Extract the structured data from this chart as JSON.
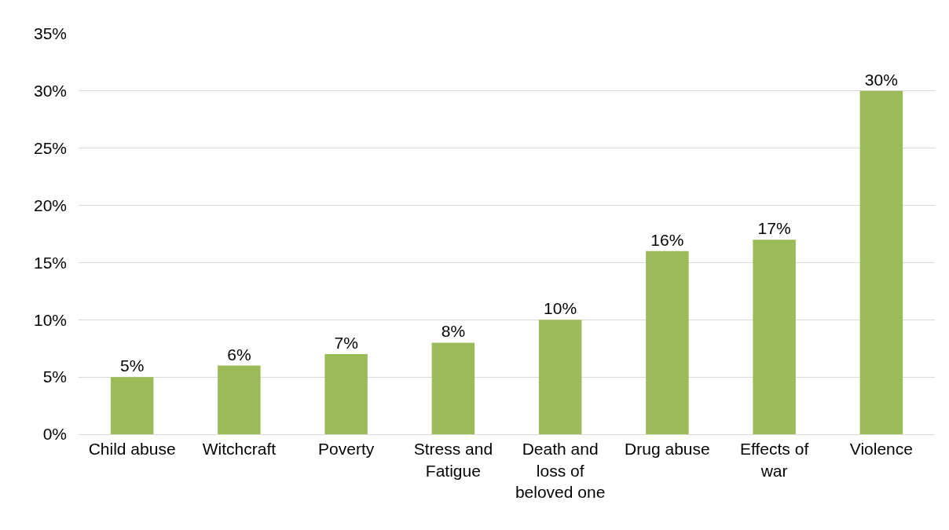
{
  "chart_data": {
    "type": "bar",
    "categories": [
      "Child abuse",
      "Witchcraft",
      "Poverty",
      "Stress and Fatigue",
      "Death and loss of beloved one",
      "Drug abuse",
      "Effects of war",
      "Violence"
    ],
    "values": [
      5,
      6,
      7,
      8,
      10,
      16,
      17,
      30
    ],
    "value_labels": [
      "5%",
      "6%",
      "7%",
      "8%",
      "10%",
      "16%",
      "17%",
      "30%"
    ],
    "color": "#9bbb59",
    "ylim": [
      0,
      35
    ],
    "yticks": [
      {
        "value": 0,
        "label": "0%"
      },
      {
        "value": 5,
        "label": "5%"
      },
      {
        "value": 10,
        "label": "10%"
      },
      {
        "value": 15,
        "label": "15%"
      },
      {
        "value": 20,
        "label": "20%"
      },
      {
        "value": 25,
        "label": "25%"
      },
      {
        "value": 30,
        "label": "30%"
      },
      {
        "value": 35,
        "label": "35%"
      }
    ],
    "grid": "y"
  }
}
